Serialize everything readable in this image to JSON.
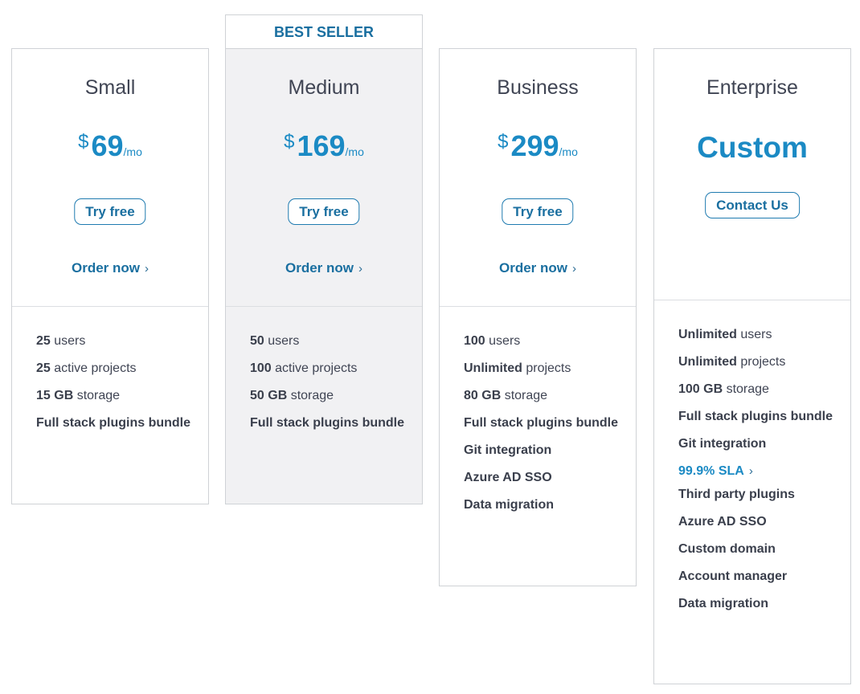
{
  "badge": "BEST SELLER",
  "plans": [
    {
      "name": "Small",
      "currency": "$",
      "amount": "69",
      "period": "/mo",
      "cta": "Try free",
      "order": "Order now",
      "features": [
        {
          "bold": "25",
          "rest": " users"
        },
        {
          "bold": "25",
          "rest": " active projects"
        },
        {
          "bold": "15 GB",
          "rest": " storage"
        },
        {
          "bold": "Full stack plugins bundle",
          "rest": ""
        }
      ]
    },
    {
      "name": "Medium",
      "currency": "$",
      "amount": "169",
      "period": "/mo",
      "cta": "Try free",
      "order": "Order now",
      "features": [
        {
          "bold": "50",
          "rest": " users"
        },
        {
          "bold": "100",
          "rest": " active projects"
        },
        {
          "bold": "50 GB",
          "rest": " storage"
        },
        {
          "bold": "Full stack plugins bundle",
          "rest": ""
        }
      ]
    },
    {
      "name": "Business",
      "currency": "$",
      "amount": "299",
      "period": "/mo",
      "cta": "Try free",
      "order": "Order now",
      "features": [
        {
          "bold": "100",
          "rest": " users"
        },
        {
          "bold": "Unlimited",
          "rest": " projects"
        },
        {
          "bold": "80 GB",
          "rest": " storage"
        },
        {
          "bold": "Full stack plugins bundle",
          "rest": ""
        },
        {
          "bold": "Git integration",
          "rest": ""
        },
        {
          "bold": "Azure AD SSO",
          "rest": ""
        },
        {
          "bold": "Data migration",
          "rest": ""
        }
      ]
    },
    {
      "name": "Enterprise",
      "price_text": "Custom",
      "cta": "Contact Us",
      "features": [
        {
          "bold": "Unlimited",
          "rest": " users"
        },
        {
          "bold": "Unlimited",
          "rest": " projects"
        },
        {
          "bold": "100 GB",
          "rest": " storage"
        },
        {
          "bold": "Full stack plugins bundle",
          "rest": ""
        },
        {
          "bold": "Git integration",
          "rest": ""
        },
        {
          "link": "99.9% SLA"
        },
        {
          "bold": "Third party plugins",
          "rest": ""
        },
        {
          "bold": "Azure AD SSO",
          "rest": ""
        },
        {
          "bold": "Custom domain",
          "rest": ""
        },
        {
          "bold": "Account manager",
          "rest": ""
        },
        {
          "bold": "Data migration",
          "rest": ""
        }
      ]
    }
  ],
  "colors": {
    "accent": "#1b8ac4",
    "button_text": "#1a6fa0",
    "highlight_bg": "#f1f1f3",
    "border": "#cfd2d6"
  },
  "icons": {
    "chevron": "chevron-right-icon"
  }
}
